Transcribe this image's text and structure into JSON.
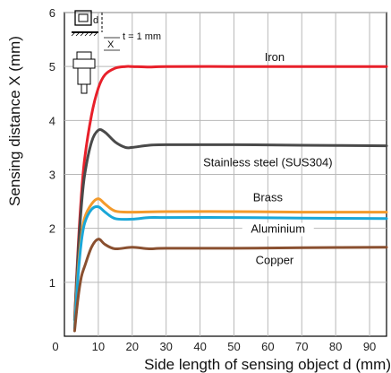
{
  "chart_data": {
    "type": "line",
    "title": "",
    "xlabel": "Side length of sensing object d (mm)",
    "ylabel": "Sensing distance X (mm)",
    "xlim": [
      0,
      95
    ],
    "ylim": [
      0,
      6
    ],
    "x_ticks": [
      0,
      10,
      20,
      30,
      40,
      50,
      60,
      70,
      80,
      90
    ],
    "y_ticks": [
      1,
      2,
      3,
      4,
      5,
      6
    ],
    "grid": true,
    "series": [
      {
        "name": "Iron",
        "color": "#e8202a",
        "x": [
          3,
          4,
          5,
          6,
          8,
          10,
          12,
          15,
          18,
          20,
          25,
          30,
          50,
          70,
          95
        ],
        "y": [
          0.3,
          1.6,
          2.6,
          3.3,
          4.1,
          4.6,
          4.85,
          4.97,
          5.0,
          5.0,
          4.99,
          5.0,
          5.0,
          5.0,
          5.0
        ]
      },
      {
        "name": "Stainless steel (SUS304)",
        "color": "#4a4a4a",
        "x": [
          3,
          4,
          5,
          6,
          8,
          10,
          12,
          15,
          18,
          20,
          25,
          30,
          50,
          70,
          95
        ],
        "y": [
          0.3,
          1.5,
          2.4,
          3.0,
          3.6,
          3.82,
          3.78,
          3.6,
          3.5,
          3.5,
          3.54,
          3.55,
          3.55,
          3.54,
          3.53
        ]
      },
      {
        "name": "Brass",
        "color": "#f39a2b",
        "x": [
          3,
          4,
          5,
          6,
          8,
          10,
          12,
          15,
          20,
          30,
          50,
          70,
          95
        ],
        "y": [
          0.2,
          1.2,
          1.85,
          2.2,
          2.45,
          2.55,
          2.45,
          2.32,
          2.3,
          2.31,
          2.31,
          2.3,
          2.3
        ]
      },
      {
        "name": "Aluminium",
        "color": "#1aa7d8",
        "x": [
          3,
          4,
          5,
          6,
          8,
          10,
          12,
          15,
          20,
          25,
          30,
          50,
          70,
          95
        ],
        "y": [
          0.15,
          1.1,
          1.75,
          2.1,
          2.35,
          2.4,
          2.3,
          2.18,
          2.17,
          2.2,
          2.2,
          2.2,
          2.19,
          2.18
        ]
      },
      {
        "name": "Copper",
        "color": "#8a5030",
        "x": [
          3,
          4,
          5,
          6,
          8,
          10,
          12,
          15,
          20,
          25,
          30,
          50,
          70,
          95
        ],
        "y": [
          0.1,
          0.7,
          1.1,
          1.3,
          1.65,
          1.8,
          1.7,
          1.62,
          1.65,
          1.62,
          1.63,
          1.63,
          1.64,
          1.65
        ]
      }
    ],
    "inset": {
      "d_label": "d",
      "x_label": "X",
      "t_label": "t = 1 mm"
    }
  }
}
